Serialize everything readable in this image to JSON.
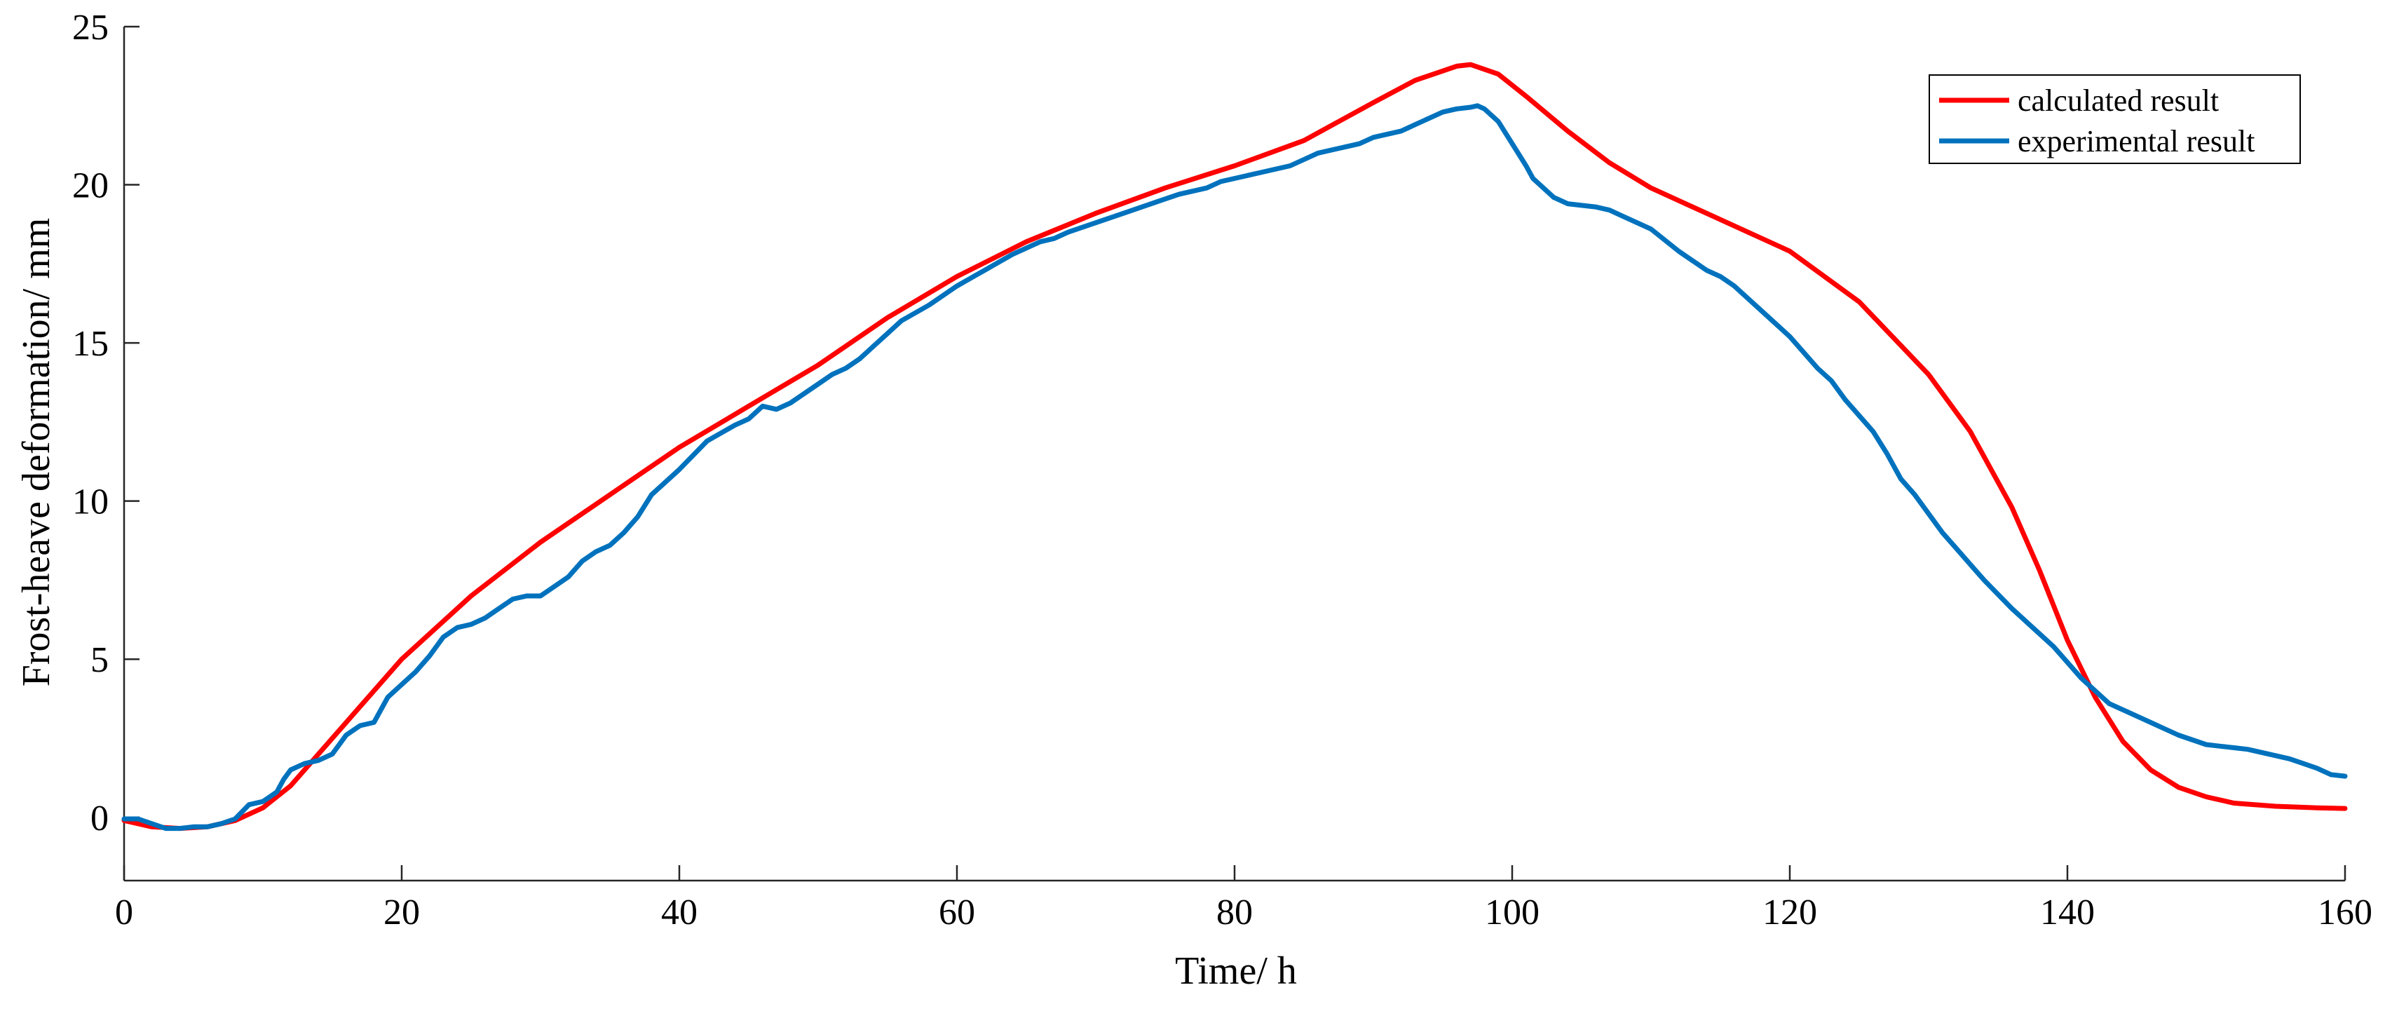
{
  "chart_data": {
    "type": "line",
    "title": "",
    "xlabel": "Time/ h",
    "ylabel": "Frost-heave deformation/ mm",
    "xlim": [
      0,
      160
    ],
    "ylim": [
      -2,
      25
    ],
    "xticks": [
      0,
      20,
      40,
      60,
      80,
      100,
      120,
      140,
      160
    ],
    "yticks": [
      0,
      5,
      10,
      15,
      20,
      25
    ],
    "xtick_labels": [
      "0",
      "20",
      "40",
      "60",
      "80",
      "100",
      "120",
      "140",
      "160"
    ],
    "ytick_labels": [
      "0",
      "5",
      "10",
      "15",
      "20",
      "25"
    ],
    "grid": false,
    "legend_position": "top-right",
    "series": [
      {
        "name": "calculated result",
        "color": "#ff0000",
        "x": [
          0,
          2,
          4,
          6,
          8,
          10,
          12,
          14,
          16,
          18,
          20,
          25,
          30,
          35,
          40,
          45,
          50,
          55,
          60,
          65,
          70,
          75,
          80,
          85,
          90,
          93,
          96,
          97,
          99,
          101,
          104,
          107,
          110,
          115,
          120,
          125,
          130,
          133,
          136,
          138,
          140,
          142,
          144,
          146,
          148,
          150,
          152,
          155,
          158,
          160
        ],
        "y": [
          -0.1,
          -0.3,
          -0.35,
          -0.3,
          -0.1,
          0.3,
          1.0,
          2.0,
          3.0,
          4.0,
          5.0,
          7.0,
          8.7,
          10.2,
          11.7,
          13.0,
          14.3,
          15.8,
          17.1,
          18.2,
          19.1,
          19.9,
          20.6,
          21.4,
          22.6,
          23.3,
          23.75,
          23.8,
          23.5,
          22.8,
          21.7,
          20.7,
          19.9,
          18.9,
          17.9,
          16.3,
          14.0,
          12.2,
          9.8,
          7.8,
          5.6,
          3.8,
          2.4,
          1.5,
          0.95,
          0.65,
          0.45,
          0.35,
          0.3,
          0.28
        ]
      },
      {
        "name": "experimental result",
        "color": "#0072bd",
        "x": [
          0,
          1,
          2,
          3,
          4,
          5,
          6,
          7,
          8,
          9,
          10,
          11,
          11.5,
          12,
          13,
          14,
          15,
          16,
          17,
          18,
          19,
          20,
          21,
          22,
          23,
          24,
          25,
          26,
          27,
          28,
          29,
          30,
          31,
          32,
          33,
          34,
          35,
          36,
          37,
          38,
          40,
          42,
          44,
          45,
          46,
          47,
          48,
          49,
          50,
          51,
          52,
          53,
          54,
          55,
          56,
          58,
          60,
          62,
          64,
          66,
          67,
          68,
          70,
          72,
          74,
          76,
          78,
          79,
          80,
          82,
          84,
          85,
          86,
          88,
          89,
          90,
          92,
          93,
          94,
          95,
          96,
          97,
          97.5,
          98,
          99,
          100,
          101,
          101.5,
          102,
          103,
          104,
          105,
          106,
          107,
          108,
          110,
          112,
          114,
          115,
          116,
          118,
          120,
          122,
          123,
          124,
          126,
          127,
          128,
          129,
          130,
          131,
          132,
          133,
          134,
          136,
          137,
          138,
          139,
          140,
          141,
          142,
          143,
          144,
          145,
          146,
          147,
          148,
          150,
          151,
          152,
          153,
          154,
          155,
          156,
          157,
          158,
          159,
          160
        ],
        "y": [
          -0.05,
          -0.05,
          -0.2,
          -0.35,
          -0.35,
          -0.3,
          -0.3,
          -0.2,
          -0.05,
          0.4,
          0.5,
          0.8,
          1.2,
          1.5,
          1.7,
          1.8,
          2.0,
          2.6,
          2.9,
          3.0,
          3.8,
          4.2,
          4.6,
          5.1,
          5.7,
          6.0,
          6.1,
          6.3,
          6.6,
          6.9,
          7.0,
          7.0,
          7.3,
          7.6,
          8.1,
          8.4,
          8.6,
          9.0,
          9.5,
          10.2,
          11.0,
          11.9,
          12.4,
          12.6,
          13.0,
          12.9,
          13.1,
          13.4,
          13.7,
          14.0,
          14.2,
          14.5,
          14.9,
          15.3,
          15.7,
          16.2,
          16.8,
          17.3,
          17.8,
          18.2,
          18.3,
          18.5,
          18.8,
          19.1,
          19.4,
          19.7,
          19.9,
          20.1,
          20.2,
          20.4,
          20.6,
          20.8,
          21.0,
          21.2,
          21.3,
          21.5,
          21.7,
          21.9,
          22.1,
          22.3,
          22.4,
          22.45,
          22.5,
          22.4,
          22.0,
          21.3,
          20.6,
          20.2,
          20.0,
          19.6,
          19.4,
          19.35,
          19.3,
          19.2,
          19.0,
          18.6,
          17.9,
          17.3,
          17.1,
          16.8,
          16.0,
          15.2,
          14.2,
          13.8,
          13.2,
          12.2,
          11.5,
          10.7,
          10.2,
          9.6,
          9.0,
          8.5,
          8.0,
          7.5,
          6.6,
          6.2,
          5.8,
          5.4,
          4.9,
          4.4,
          4.0,
          3.6,
          3.4,
          3.2,
          3.0,
          2.8,
          2.6,
          2.3,
          2.25,
          2.2,
          2.15,
          2.05,
          1.95,
          1.85,
          1.7,
          1.55,
          1.35,
          1.3
        ]
      }
    ]
  }
}
